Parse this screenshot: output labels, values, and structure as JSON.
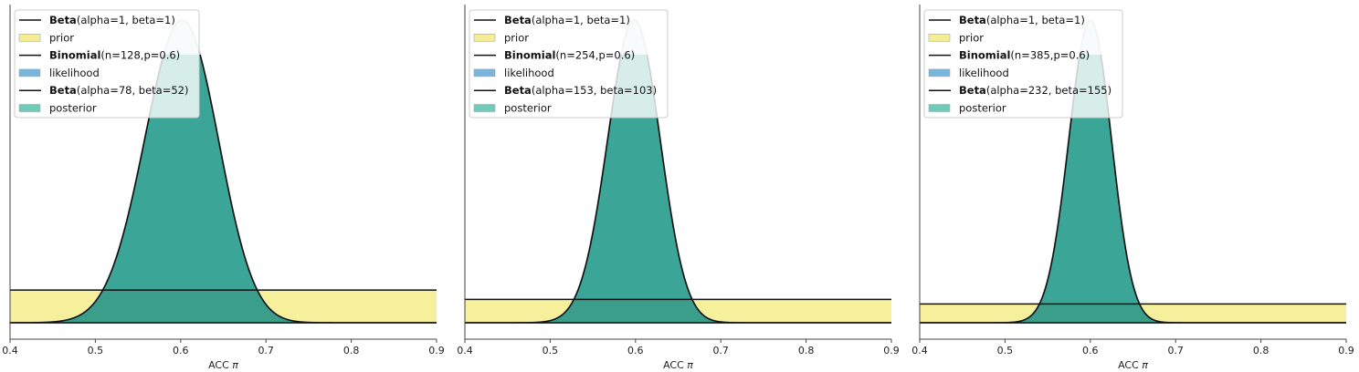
{
  "chart_data": [
    {
      "type": "area",
      "xlabel": "ACC",
      "xlabel_symbol": "π",
      "xlim": [
        0.4,
        0.9
      ],
      "xticks": [
        "0.4",
        "0.5",
        "0.6",
        "0.7",
        "0.8",
        "0.9"
      ],
      "grid": false,
      "legend_position": "top-left",
      "prior": {
        "dist": "Beta",
        "params": "(alpha=1, beta=1)",
        "label": "prior",
        "color": "#f5ec8a"
      },
      "likelihood": {
        "dist": "Binomial",
        "params": "(n=128,p=0.6)",
        "label": "likelihood",
        "n": 128,
        "p": 0.6,
        "color": "#6baed6"
      },
      "posterior": {
        "dist": "Beta",
        "params": "(alpha=78, beta=52)",
        "label": "posterior",
        "alpha": 78,
        "beta": 52,
        "color": "#2a9d8f"
      },
      "prior_level": 0.108
    },
    {
      "type": "area",
      "xlabel": "ACC",
      "xlabel_symbol": "π",
      "xlim": [
        0.4,
        0.9
      ],
      "xticks": [
        "0.4",
        "0.5",
        "0.6",
        "0.7",
        "0.8",
        "0.9"
      ],
      "grid": false,
      "legend_position": "top-left",
      "prior": {
        "dist": "Beta",
        "params": "(alpha=1, beta=1)",
        "label": "prior",
        "color": "#f5ec8a"
      },
      "likelihood": {
        "dist": "Binomial",
        "params": "(n=254,p=0.6)",
        "label": "likelihood",
        "n": 254,
        "p": 0.6,
        "color": "#6baed6"
      },
      "posterior": {
        "dist": "Beta",
        "params": "(alpha=153, beta=103)",
        "label": "posterior",
        "alpha": 153,
        "beta": 103,
        "color": "#2a9d8f"
      },
      "prior_level": 0.077
    },
    {
      "type": "area",
      "xlabel": "ACC",
      "xlabel_symbol": "π",
      "xlim": [
        0.4,
        0.9
      ],
      "xticks": [
        "0.4",
        "0.5",
        "0.6",
        "0.7",
        "0.8",
        "0.9"
      ],
      "grid": false,
      "legend_position": "top-left",
      "prior": {
        "dist": "Beta",
        "params": "(alpha=1, beta=1)",
        "label": "prior",
        "color": "#f5ec8a"
      },
      "likelihood": {
        "dist": "Binomial",
        "params": "(n=385,p=0.6)",
        "label": "likelihood",
        "n": 385,
        "p": 0.6,
        "color": "#6baed6"
      },
      "posterior": {
        "dist": "Beta",
        "params": "(alpha=232, beta=155)",
        "label": "posterior",
        "alpha": 232,
        "beta": 155,
        "color": "#2a9d8f"
      },
      "prior_level": 0.062
    }
  ]
}
